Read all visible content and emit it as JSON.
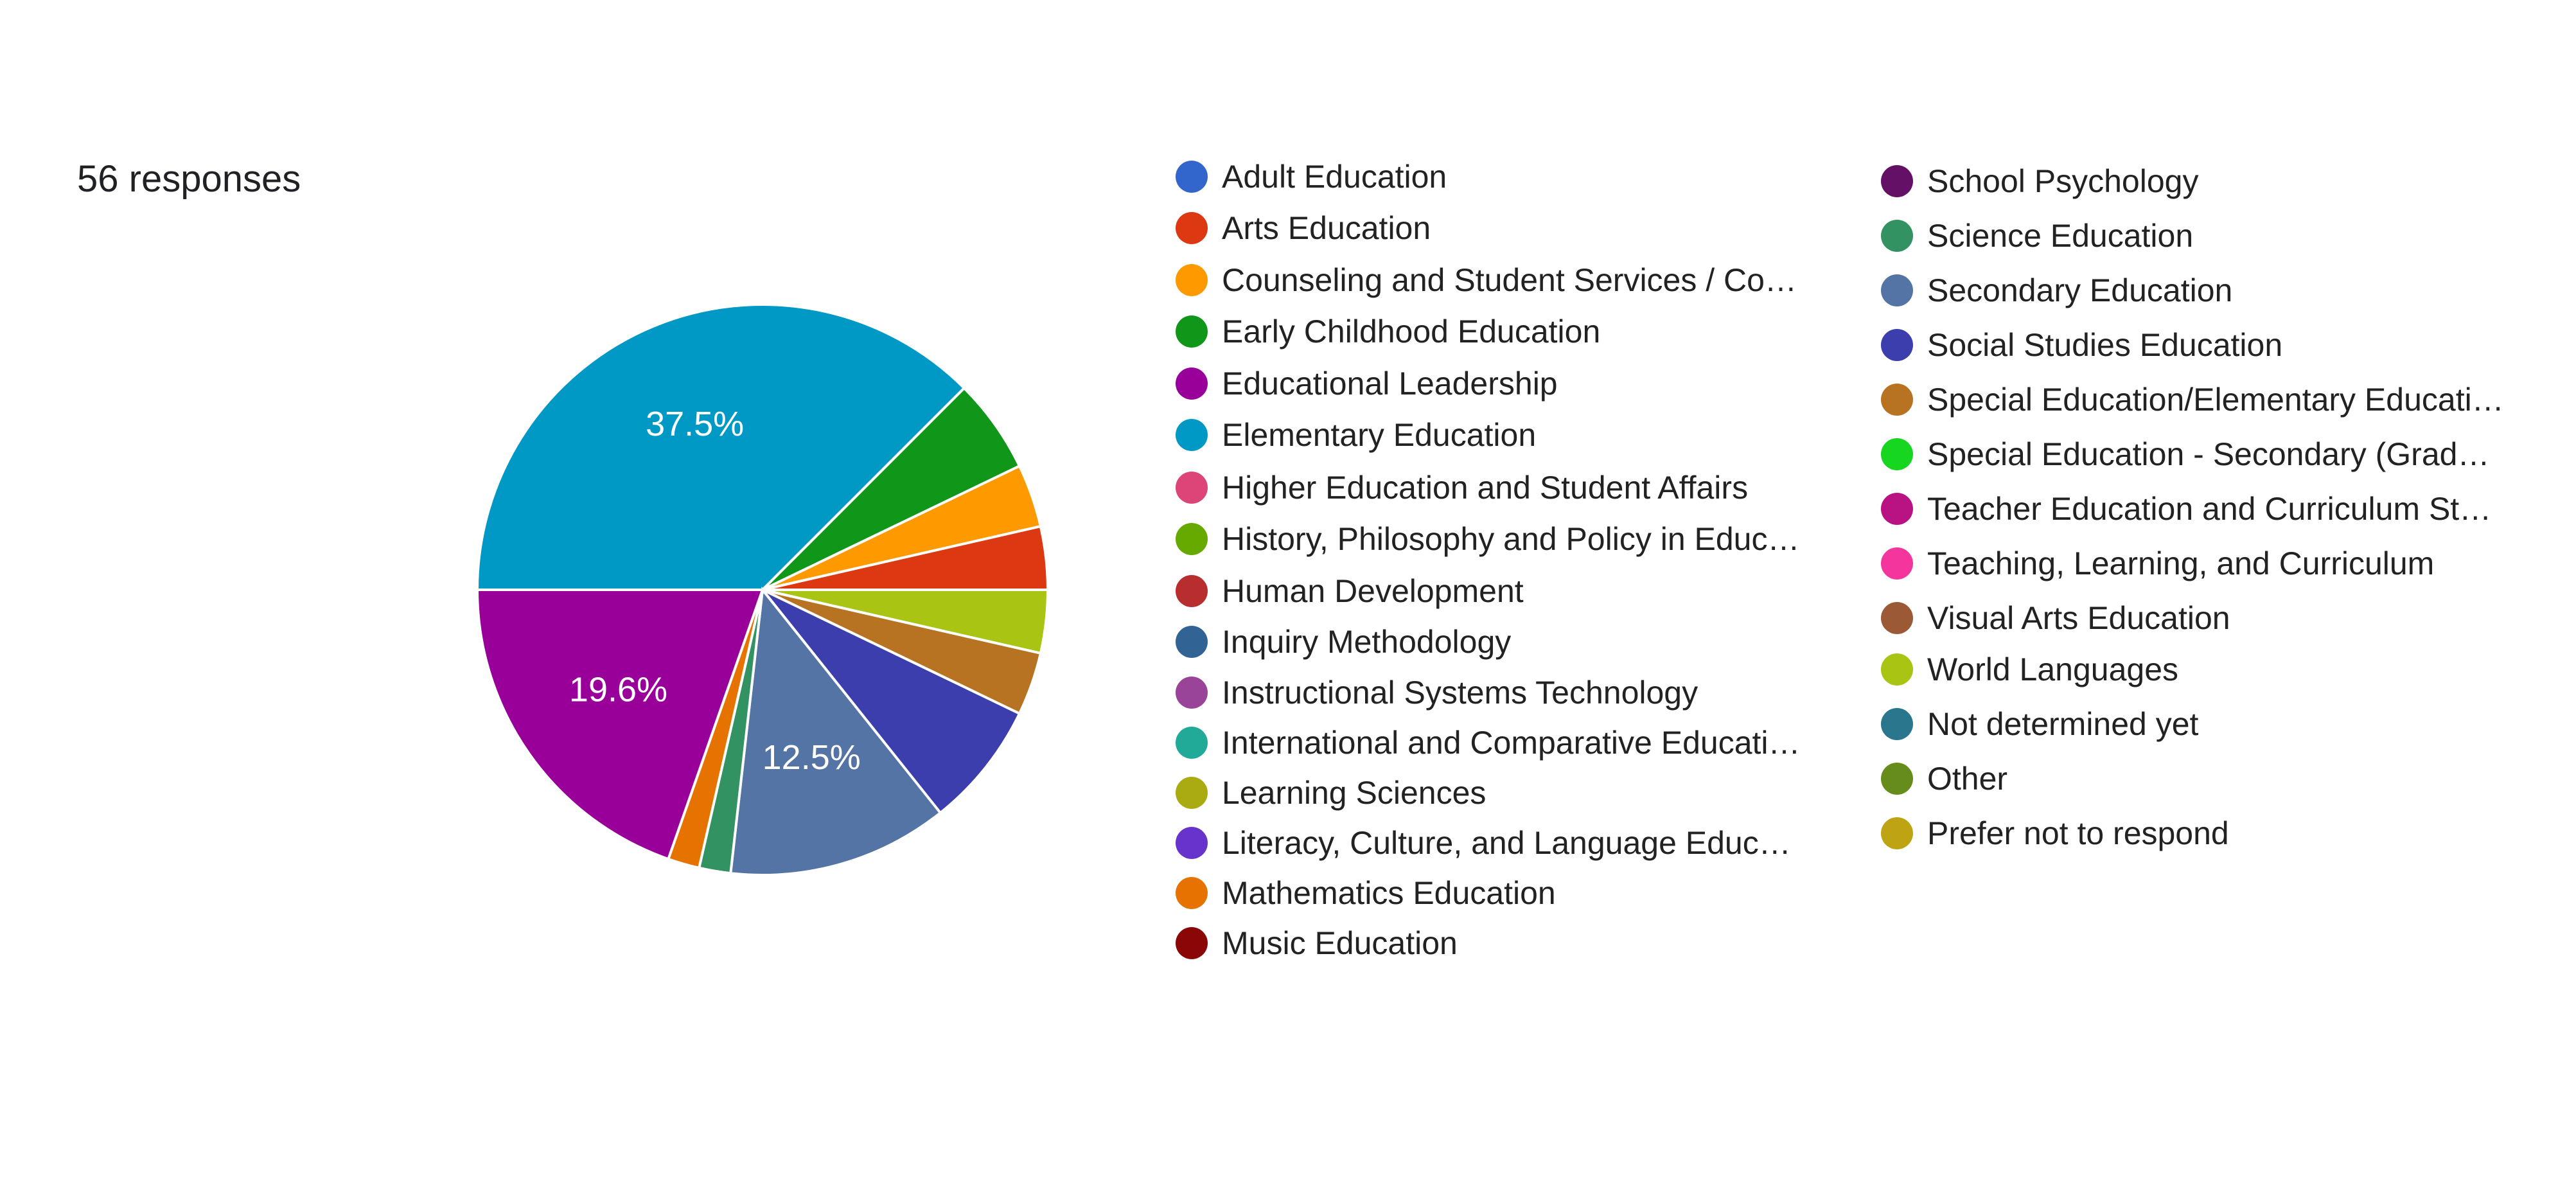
{
  "response_summary": "56 responses",
  "chart_data": {
    "type": "pie",
    "total_responses": 56,
    "legend": [
      {
        "label": "Adult Education",
        "color": "#3366cc"
      },
      {
        "label": "Arts Education",
        "color": "#dc3912"
      },
      {
        "label": "Counseling and Student Services / Co…",
        "color": "#ff9900"
      },
      {
        "label": "Early Childhood Education",
        "color": "#109618"
      },
      {
        "label": "Educational Leadership",
        "color": "#990099"
      },
      {
        "label": "Elementary Education",
        "color": "#0099c6"
      },
      {
        "label": "Higher Education and Student Affairs",
        "color": "#dd4477"
      },
      {
        "label": "History, Philosophy and Policy in Educ…",
        "color": "#66aa00"
      },
      {
        "label": "Human Development",
        "color": "#b82e2e"
      },
      {
        "label": "Inquiry Methodology",
        "color": "#316395"
      },
      {
        "label": "Instructional Systems Technology",
        "color": "#994499"
      },
      {
        "label": "International and Comparative Educati…",
        "color": "#22aa99"
      },
      {
        "label": "Learning Sciences",
        "color": "#aaaa11"
      },
      {
        "label": "Literacy, Culture, and Language Educ…",
        "color": "#6633cc"
      },
      {
        "label": "Mathematics Education",
        "color": "#e67300"
      },
      {
        "label": "Music Education",
        "color": "#8b0707"
      },
      {
        "label": "School Psychology",
        "color": "#651067"
      },
      {
        "label": "Science Education",
        "color": "#329262"
      },
      {
        "label": "Secondary Education",
        "color": "#5574a6"
      },
      {
        "label": "Social Studies Education",
        "color": "#3b3eac"
      },
      {
        "label": "Special Education/Elementary Educati…",
        "color": "#b77322"
      },
      {
        "label": "Special Education - Secondary (Grad…",
        "color": "#16d620"
      },
      {
        "label": "Teacher Education and Curriculum St…",
        "color": "#b91383"
      },
      {
        "label": "Teaching, Learning, and Curriculum",
        "color": "#f4359e"
      },
      {
        "label": "Visual Arts Education",
        "color": "#9c5935"
      },
      {
        "label": "World Languages",
        "color": "#a9c413"
      },
      {
        "label": "Not determined yet",
        "color": "#2a778d"
      },
      {
        "label": "Other",
        "color": "#668d1c"
      },
      {
        "label": "Prefer not to respond",
        "color": "#bea413"
      }
    ],
    "slices": [
      {
        "label": "Elementary Education",
        "count": 21,
        "percent": 37.5,
        "color": "#0099c6",
        "display": "37.5%"
      },
      {
        "label": "Early Childhood Education",
        "count": 3,
        "percent": 5.4,
        "color": "#109618"
      },
      {
        "label": "Counseling and Student Services / Co…",
        "count": 2,
        "percent": 3.6,
        "color": "#ff9900"
      },
      {
        "label": "Arts Education",
        "count": 2,
        "percent": 3.6,
        "color": "#dc3912"
      },
      {
        "label": "World Languages",
        "count": 2,
        "percent": 3.6,
        "color": "#a9c413"
      },
      {
        "label": "Special Education/Elementary Educati…",
        "count": 2,
        "percent": 3.6,
        "color": "#b77322"
      },
      {
        "label": "Social Studies Education",
        "count": 4,
        "percent": 7.1,
        "color": "#3b3eac"
      },
      {
        "label": "Secondary Education",
        "count": 7,
        "percent": 12.5,
        "color": "#5574a6",
        "display": "12.5%"
      },
      {
        "label": "Science Education",
        "count": 1,
        "percent": 1.8,
        "color": "#329262"
      },
      {
        "label": "Mathematics Education",
        "count": 1,
        "percent": 1.8,
        "color": "#e67300"
      },
      {
        "label": "Educational Leadership",
        "count": 11,
        "percent": 19.6,
        "color": "#990099",
        "display": "19.6%"
      }
    ]
  }
}
